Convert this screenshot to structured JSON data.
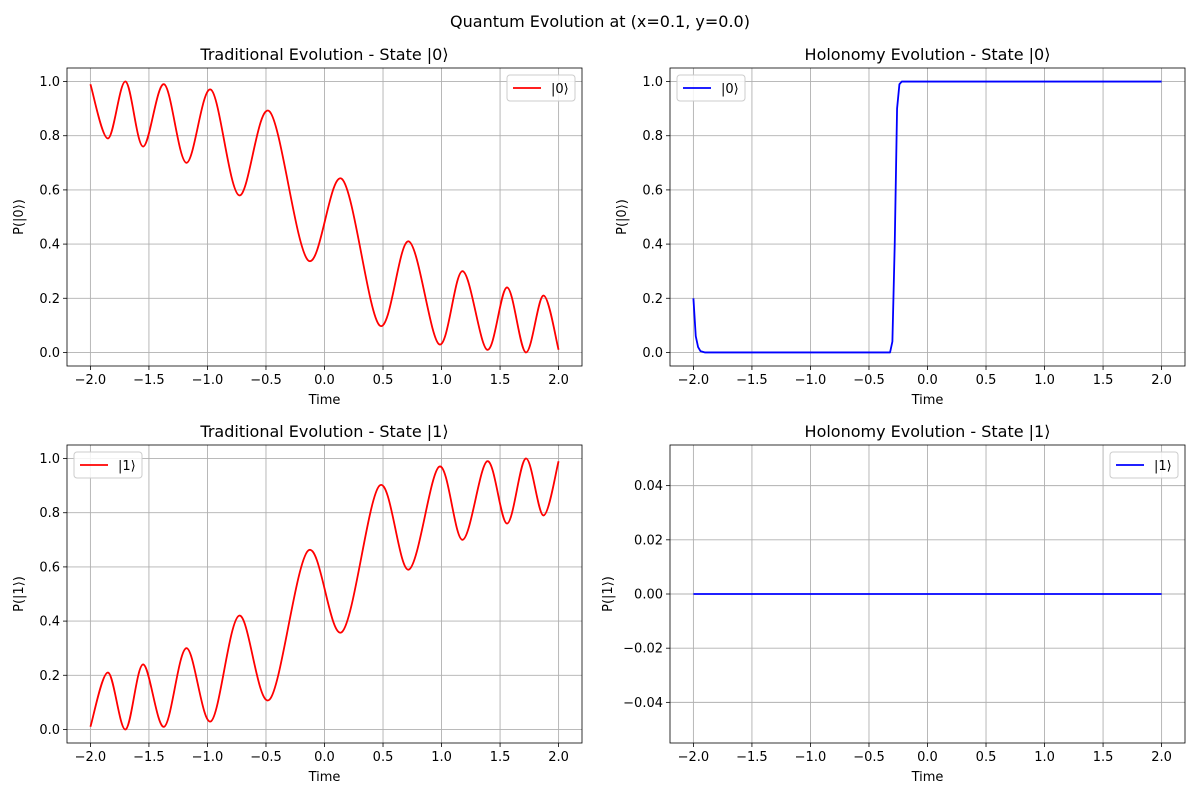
{
  "suptitle": "Quantum Evolution at (x=0.1, y=0.0)",
  "chart_data": [
    {
      "type": "line",
      "title": "Traditional Evolution - State |0⟩",
      "xlabel": "Time",
      "ylabel": "P(|0⟩)",
      "xlim": [
        -2.2,
        2.2
      ],
      "ylim": [
        -0.05,
        1.05
      ],
      "xticks": [
        -2.0,
        -1.5,
        -1.0,
        -0.5,
        0.0,
        0.5,
        1.0,
        1.5,
        2.0
      ],
      "xtick_labels": [
        "−2.0",
        "−1.5",
        "−1.0",
        "−0.5",
        "0.0",
        "0.5",
        "1.0",
        "1.5",
        "2.0"
      ],
      "yticks": [
        0.0,
        0.2,
        0.4,
        0.6,
        0.8,
        1.0
      ],
      "ytick_labels": [
        "0.0",
        "0.2",
        "0.4",
        "0.6",
        "0.8",
        "1.0"
      ],
      "grid": true,
      "legend": "upper right",
      "series": [
        {
          "name": "|0⟩",
          "color": "#ff0000",
          "x": [
            -2.0,
            -1.85,
            -1.7,
            -1.55,
            -1.37,
            -1.18,
            -0.97,
            -0.73,
            -0.47,
            -0.14,
            0.15,
            0.47,
            0.72,
            0.98,
            1.18,
            1.39,
            1.56,
            1.72,
            1.87,
            2.0
          ],
          "y": [
            0.99,
            0.79,
            1.0,
            0.76,
            0.99,
            0.7,
            0.97,
            0.58,
            0.89,
            0.34,
            0.64,
            0.1,
            0.41,
            0.03,
            0.3,
            0.01,
            0.24,
            0.0,
            0.21,
            0.01
          ]
        }
      ]
    },
    {
      "type": "line",
      "title": "Holonomy Evolution - State |0⟩",
      "xlabel": "Time",
      "ylabel": "P(|0⟩)",
      "xlim": [
        -2.2,
        2.2
      ],
      "ylim": [
        -0.05,
        1.05
      ],
      "xticks": [
        -2.0,
        -1.5,
        -1.0,
        -0.5,
        0.0,
        0.5,
        1.0,
        1.5,
        2.0
      ],
      "xtick_labels": [
        "−2.0",
        "−1.5",
        "−1.0",
        "−0.5",
        "0.0",
        "0.5",
        "1.0",
        "1.5",
        "2.0"
      ],
      "yticks": [
        0.0,
        0.2,
        0.4,
        0.6,
        0.8,
        1.0
      ],
      "ytick_labels": [
        "0.0",
        "0.2",
        "0.4",
        "0.6",
        "0.8",
        "1.0"
      ],
      "grid": true,
      "legend": "upper left",
      "series": [
        {
          "name": "|0⟩",
          "color": "#0000ff",
          "x": [
            -2.0,
            -1.98,
            -1.96,
            -1.94,
            -1.9,
            -1.8,
            -0.32,
            -0.3,
            -0.28,
            -0.26,
            -0.24,
            -0.22,
            -0.2,
            0.0,
            2.0
          ],
          "y": [
            0.2,
            0.06,
            0.02,
            0.005,
            0.0,
            0.0,
            0.0,
            0.04,
            0.4,
            0.9,
            0.99,
            1.0,
            1.0,
            1.0,
            1.0
          ]
        }
      ]
    },
    {
      "type": "line",
      "title": "Traditional Evolution - State |1⟩",
      "xlabel": "Time",
      "ylabel": "P(|1⟩)",
      "xlim": [
        -2.2,
        2.2
      ],
      "ylim": [
        -0.05,
        1.05
      ],
      "xticks": [
        -2.0,
        -1.5,
        -1.0,
        -0.5,
        0.0,
        0.5,
        1.0,
        1.5,
        2.0
      ],
      "xtick_labels": [
        "−2.0",
        "−1.5",
        "−1.0",
        "−0.5",
        "0.0",
        "0.5",
        "1.0",
        "1.5",
        "2.0"
      ],
      "yticks": [
        0.0,
        0.2,
        0.4,
        0.6,
        0.8,
        1.0
      ],
      "ytick_labels": [
        "0.0",
        "0.2",
        "0.4",
        "0.6",
        "0.8",
        "1.0"
      ],
      "grid": true,
      "legend": "upper left",
      "series": [
        {
          "name": "|1⟩",
          "color": "#ff0000",
          "x": [
            -2.0,
            -1.85,
            -1.7,
            -1.55,
            -1.37,
            -1.18,
            -0.97,
            -0.73,
            -0.47,
            -0.14,
            0.15,
            0.47,
            0.72,
            0.98,
            1.18,
            1.39,
            1.56,
            1.72,
            1.87,
            2.0
          ],
          "y": [
            0.01,
            0.21,
            0.0,
            0.24,
            0.01,
            0.3,
            0.03,
            0.42,
            0.11,
            0.66,
            0.36,
            0.9,
            0.59,
            0.97,
            0.7,
            0.99,
            0.76,
            1.0,
            0.79,
            0.99
          ]
        }
      ]
    },
    {
      "type": "line",
      "title": "Holonomy Evolution - State |1⟩",
      "xlabel": "Time",
      "ylabel": "P(|1⟩)",
      "xlim": [
        -2.2,
        2.2
      ],
      "ylim": [
        -0.055,
        0.055
      ],
      "xticks": [
        -2.0,
        -1.5,
        -1.0,
        -0.5,
        0.0,
        0.5,
        1.0,
        1.5,
        2.0
      ],
      "xtick_labels": [
        "−2.0",
        "−1.5",
        "−1.0",
        "−0.5",
        "0.0",
        "0.5",
        "1.0",
        "1.5",
        "2.0"
      ],
      "yticks": [
        -0.04,
        -0.02,
        0.0,
        0.02,
        0.04
      ],
      "ytick_labels": [
        "−0.04",
        "−0.02",
        "0.00",
        "0.02",
        "0.04"
      ],
      "grid": true,
      "legend": "upper right",
      "series": [
        {
          "name": "|1⟩",
          "color": "#0000ff",
          "x": [
            -2.0,
            2.0
          ],
          "y": [
            0.0,
            0.0
          ]
        }
      ]
    }
  ]
}
